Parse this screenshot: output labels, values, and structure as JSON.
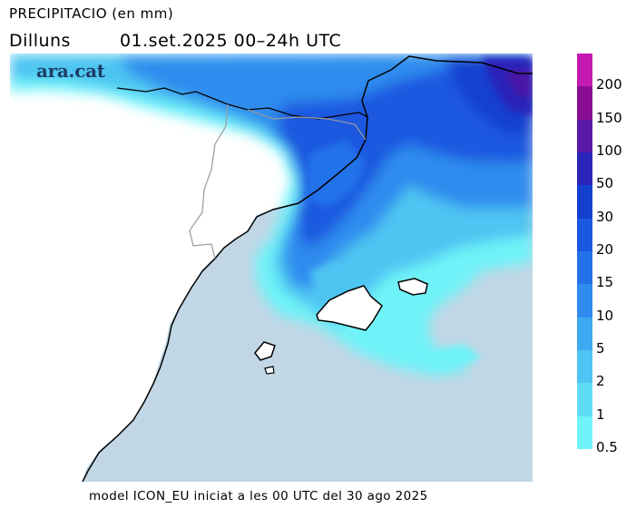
{
  "header": {
    "title": "PRECIPITACIO (en mm)",
    "day": "Dilluns",
    "period": "01.set.2025 00–24h UTC"
  },
  "logo": {
    "text": "ara.cat"
  },
  "footer": {
    "text": "model ICON_EU iniciat a les 00 UTC del 30 ago 2025"
  },
  "colors": {
    "sea": "#c1d7e6",
    "land": "#ffffff",
    "coast": "#000000",
    "border": "#a8a8a8"
  },
  "legend": {
    "labels": [
      "0.5",
      "1",
      "2",
      "5",
      "10",
      "15",
      "20",
      "30",
      "50",
      "100",
      "150",
      "200"
    ],
    "colors": [
      "#6ff3f8",
      "#5fdcf4",
      "#4ec4f2",
      "#3ea8f0",
      "#2f8cee",
      "#2472ea",
      "#1b58e0",
      "#1440d0",
      "#2a24b8",
      "#5a18a8",
      "#8a0e94",
      "#c41ab4"
    ]
  }
}
